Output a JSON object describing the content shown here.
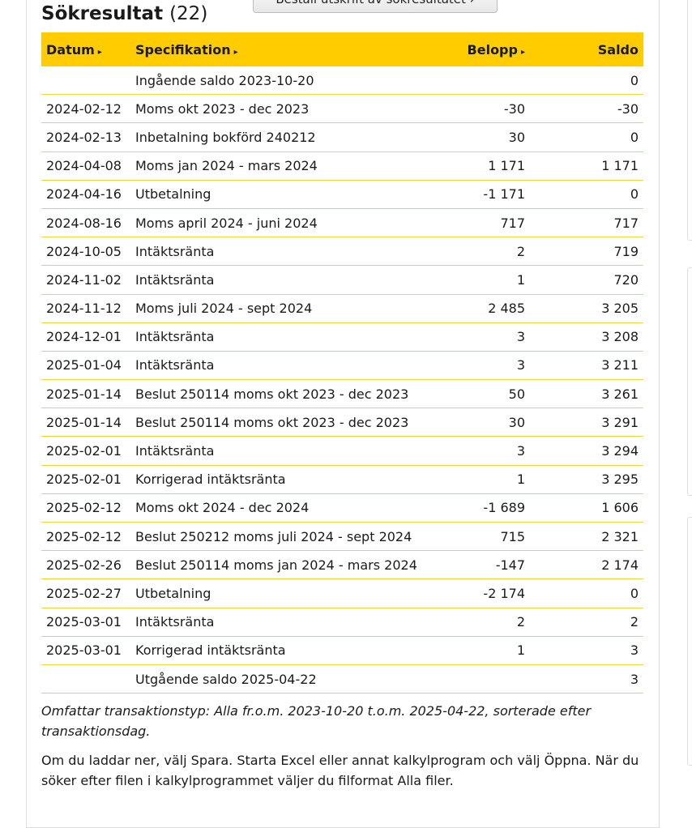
{
  "header": {
    "title": "Sökresultat",
    "count": "(22)",
    "order_button": "Beställ utskrift av sökresultatet ›"
  },
  "table": {
    "columns": [
      {
        "label": "Datum",
        "sortable": true
      },
      {
        "label": "Specifikation",
        "sortable": true
      },
      {
        "label": "Belopp",
        "sortable": true
      },
      {
        "label": "Saldo",
        "sortable": false
      }
    ],
    "sort_icon": "▸",
    "rows": [
      [
        "",
        "Ingående saldo 2023-10-20",
        "",
        "0"
      ],
      [
        "2024-02-12",
        "Moms okt 2023 - dec 2023",
        "-30",
        "-30"
      ],
      [
        "2024-02-13",
        "Inbetalning bokförd 240212",
        "30",
        "0"
      ],
      [
        "2024-04-08",
        "Moms jan 2024 - mars 2024",
        "1 171",
        "1 171"
      ],
      [
        "2024-04-16",
        "Utbetalning",
        "-1 171",
        "0"
      ],
      [
        "2024-08-16",
        "Moms april 2024 - juni 2024",
        "717",
        "717"
      ],
      [
        "2024-10-05",
        "Intäktsränta",
        "2",
        "719"
      ],
      [
        "2024-11-02",
        "Intäktsränta",
        "1",
        "720"
      ],
      [
        "2024-11-12",
        "Moms juli 2024 - sept 2024",
        "2 485",
        "3 205"
      ],
      [
        "2024-12-01",
        "Intäktsränta",
        "3",
        "3 208"
      ],
      [
        "2025-01-04",
        "Intäktsränta",
        "3",
        "3 211"
      ],
      [
        "2025-01-14",
        "Beslut 250114 moms okt 2023 - dec 2023",
        "50",
        "3 261"
      ],
      [
        "2025-01-14",
        "Beslut 250114 moms okt 2023 - dec 2023",
        "30",
        "3 291"
      ],
      [
        "2025-02-01",
        "Intäktsränta",
        "3",
        "3 294"
      ],
      [
        "2025-02-01",
        "Korrigerad intäktsränta",
        "1",
        "3 295"
      ],
      [
        "2025-02-12",
        "Moms okt 2024 - dec 2024",
        "-1 689",
        "1 606"
      ],
      [
        "2025-02-12",
        "Beslut 250212 moms juli 2024 - sept 2024",
        "715",
        "2 321"
      ],
      [
        "2025-02-26",
        "Beslut 250114 moms jan 2024 - mars 2024",
        "-147",
        "2 174"
      ],
      [
        "2025-02-27",
        "Utbetalning",
        "-2 174",
        "0"
      ],
      [
        "2025-03-01",
        "Intäktsränta",
        "2",
        "2"
      ],
      [
        "2025-03-01",
        "Korrigerad intäktsränta",
        "1",
        "3"
      ],
      [
        "",
        "Utgående saldo 2025-04-22",
        "",
        "3"
      ]
    ]
  },
  "note": "Omfattar transaktionstyp: Alla fr.o.m. 2023-10-20 t.o.m. 2025-04-22, sorterade efter transaktionsdag.",
  "info": "Om du laddar ner, välj Spara. Starta Excel eller annat kalkylprogram och välj Öppna. När du söker efter filen i kalkylprogrammet väljer du filformat Alla filer.",
  "colors": {
    "header_bg": "#ffcc00",
    "row_border": "#e8d93a"
  }
}
